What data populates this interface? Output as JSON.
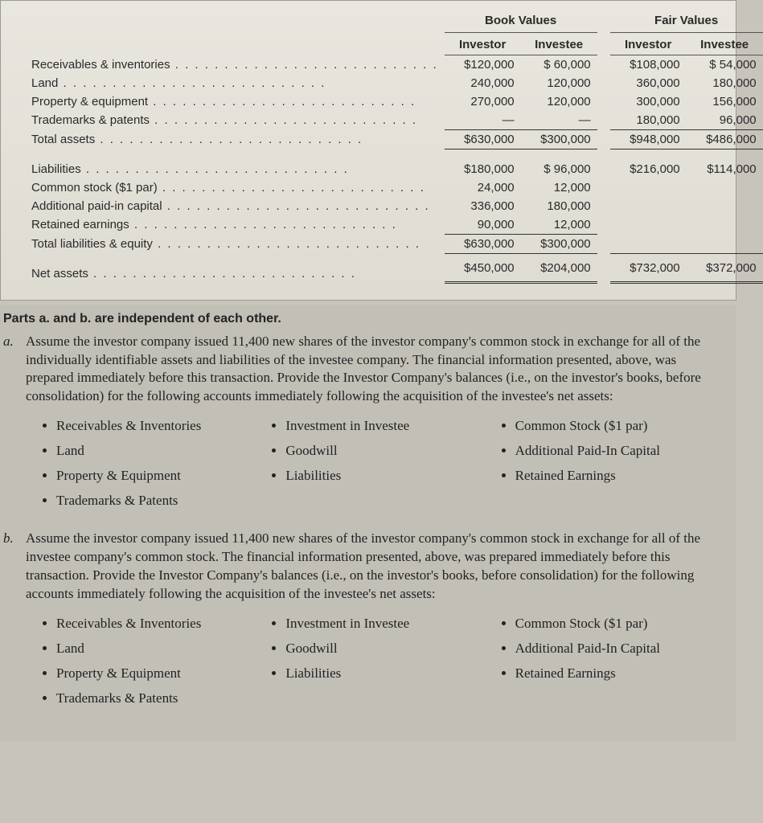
{
  "table": {
    "group_headers": [
      "Book Values",
      "Fair Values"
    ],
    "sub_headers": [
      "Investor",
      "Investee",
      "Investor",
      "Investee"
    ],
    "rows_assets": [
      {
        "label": "Receivables & inventories",
        "bv_investor": "$120,000",
        "bv_investee": "$ 60,000",
        "fv_investor": "$108,000",
        "fv_investee": "$ 54,000"
      },
      {
        "label": "Land",
        "bv_investor": "240,000",
        "bv_investee": "120,000",
        "fv_investor": "360,000",
        "fv_investee": "180,000"
      },
      {
        "label": "Property & equipment",
        "bv_investor": "270,000",
        "bv_investee": "120,000",
        "fv_investor": "300,000",
        "fv_investee": "156,000"
      },
      {
        "label": "Trademarks & patents",
        "bv_investor": "—",
        "bv_investee": "—",
        "fv_investor": "180,000",
        "fv_investee": "96,000"
      }
    ],
    "total_assets": {
      "label": "Total assets",
      "bv_investor": "$630,000",
      "bv_investee": "$300,000",
      "fv_investor": "$948,000",
      "fv_investee": "$486,000"
    },
    "rows_liab": [
      {
        "label": "Liabilities",
        "bv_investor": "$180,000",
        "bv_investee": "$ 96,000",
        "fv_investor": "$216,000",
        "fv_investee": "$114,000"
      },
      {
        "label": "Common stock ($1 par)",
        "bv_investor": "24,000",
        "bv_investee": "12,000",
        "fv_investor": "",
        "fv_investee": ""
      },
      {
        "label": "Additional paid-in capital",
        "bv_investor": "336,000",
        "bv_investee": "180,000",
        "fv_investor": "",
        "fv_investee": ""
      },
      {
        "label": "Retained earnings",
        "bv_investor": "90,000",
        "bv_investee": "12,000",
        "fv_investor": "",
        "fv_investee": ""
      }
    ],
    "total_liab": {
      "label": "Total liabilities & equity",
      "bv_investor": "$630,000",
      "bv_investee": "$300,000",
      "fv_investor": "",
      "fv_investee": ""
    },
    "net_assets": {
      "label": "Net assets",
      "bv_investor": "$450,000",
      "bv_investee": "$204,000",
      "fv_investor": "$732,000",
      "fv_investee": "$372,000"
    }
  },
  "body": {
    "heading": "Parts a. and b. are independent of each other.",
    "a_label": "a.",
    "a_text": "Assume the investor company issued 11,400 new shares of the investor company's common stock in exchange for all of the individually identifiable assets and liabilities of the investee company. The financial information presented, above, was prepared immediately before this transaction. Provide the Investor Company's balances (i.e., on the investor's books, before consolidation) for the following accounts immediately following the acquisition of the investee's net assets:",
    "b_label": "b.",
    "b_text": "Assume the investor company issued 11,400 new shares of the investor company's common stock in exchange for all of the investee company's common stock. The financial information presented, above, was prepared immediately before this transaction. Provide the Investor Company's balances (i.e., on the investor's books, before consolidation) for the following accounts immediately following the acquisition of the investee's net assets:",
    "bullets_col1": [
      "Receivables & Inventories",
      "Land",
      "Property & Equipment",
      "Trademarks & Patents"
    ],
    "bullets_col2": [
      "Investment in Investee",
      "Goodwill",
      "Liabilities"
    ],
    "bullets_col3": [
      "Common Stock ($1 par)",
      "Additional Paid-In Capital",
      "Retained Earnings"
    ]
  }
}
